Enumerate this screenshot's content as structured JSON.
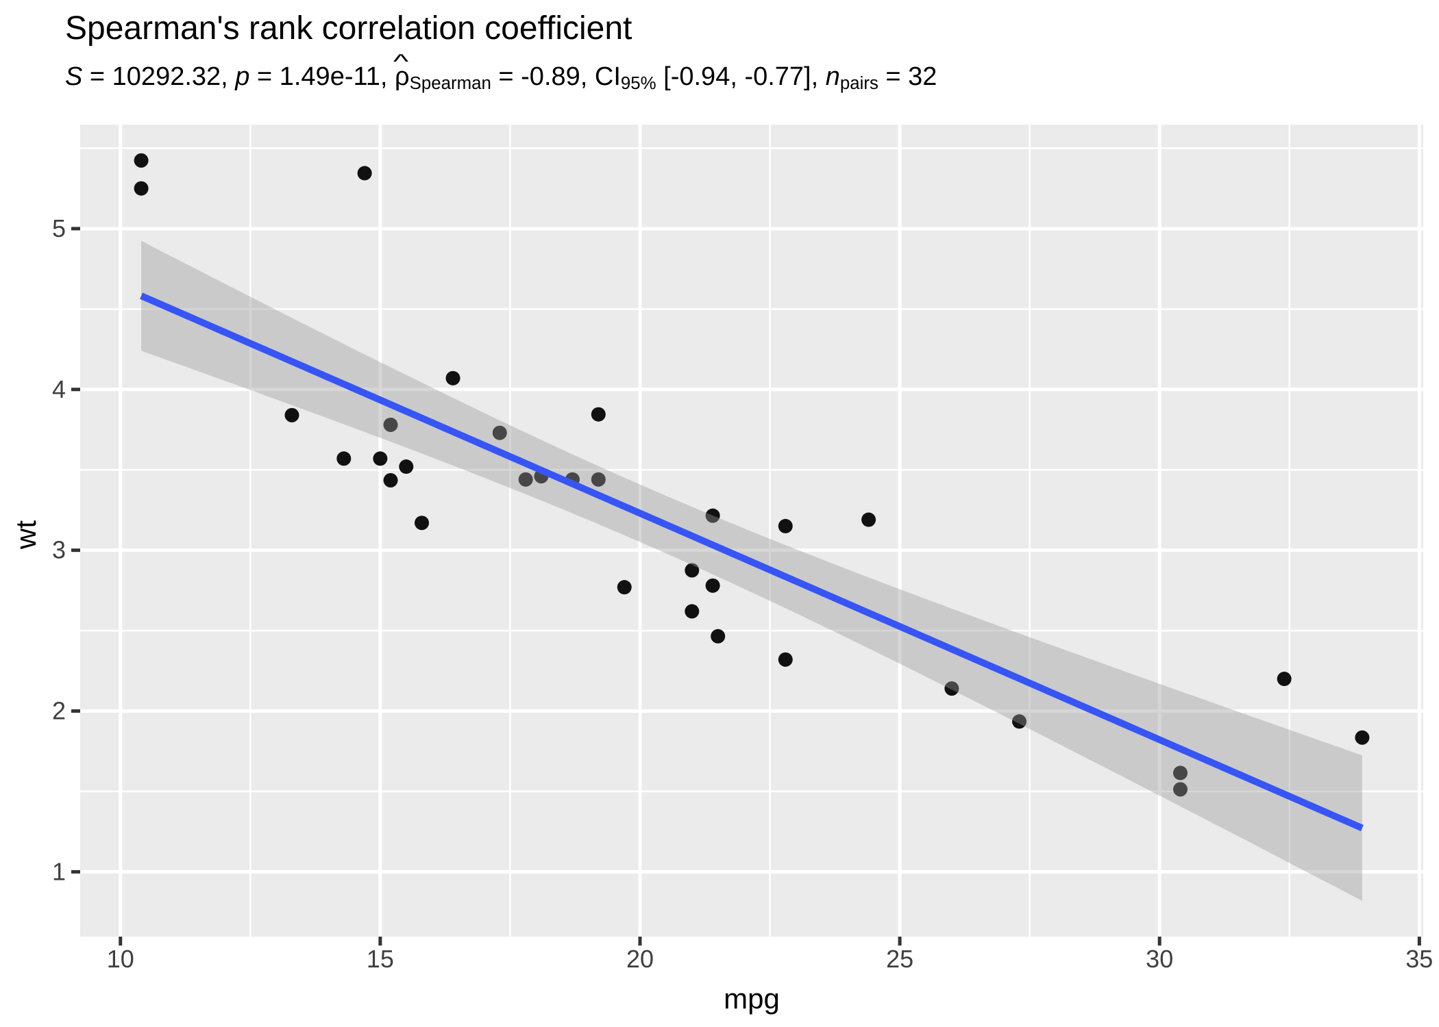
{
  "chart_data": {
    "type": "scatter",
    "title": "Spearman's rank correlation coefficient",
    "subtitle_plain": "S = 10292.32, p = 1.49e-11, ρ̂Spearman = -0.89, CI95% [-0.94, -0.77], npairs = 32",
    "subtitle_segments": [
      {
        "style": "italic",
        "text": "S"
      },
      {
        "style": "normal",
        "text": " = 10292.32, "
      },
      {
        "style": "italic",
        "text": "p"
      },
      {
        "style": "normal",
        "text": " = 1.49e-11, "
      },
      {
        "style": "hat",
        "text": "ρ",
        "hat": "^"
      },
      {
        "style": "sub",
        "text": "Spearman"
      },
      {
        "style": "normal",
        "text": " = -0.89, CI"
      },
      {
        "style": "sub",
        "text": "95%"
      },
      {
        "style": "normal",
        "text": " [-0.94, -0.77], "
      },
      {
        "style": "italic",
        "text": "n"
      },
      {
        "style": "sub",
        "text": "pairs"
      },
      {
        "style": "normal",
        "text": " = 32"
      }
    ],
    "xlabel": "mpg",
    "ylabel": "wt",
    "x_ticks": [
      10,
      15,
      20,
      25,
      30,
      35
    ],
    "y_ticks": [
      1,
      2,
      3,
      4,
      5
    ],
    "xlim": [
      9.225,
      35.075
    ],
    "ylim": [
      0.597,
      5.647
    ],
    "grid": true,
    "legend": false,
    "points": [
      [
        21.0,
        2.62
      ],
      [
        21.0,
        2.875
      ],
      [
        22.8,
        2.32
      ],
      [
        21.4,
        3.215
      ],
      [
        18.7,
        3.44
      ],
      [
        18.1,
        3.46
      ],
      [
        14.3,
        3.57
      ],
      [
        24.4,
        3.19
      ],
      [
        22.8,
        3.15
      ],
      [
        19.2,
        3.44
      ],
      [
        17.8,
        3.44
      ],
      [
        16.4,
        4.07
      ],
      [
        17.3,
        3.73
      ],
      [
        15.2,
        3.78
      ],
      [
        10.4,
        5.25
      ],
      [
        10.4,
        5.424
      ],
      [
        14.7,
        5.345
      ],
      [
        32.4,
        2.2
      ],
      [
        30.4,
        1.615
      ],
      [
        33.9,
        1.835
      ],
      [
        21.5,
        2.465
      ],
      [
        15.5,
        3.52
      ],
      [
        15.2,
        3.435
      ],
      [
        13.3,
        3.84
      ],
      [
        19.2,
        3.845
      ],
      [
        27.3,
        1.935
      ],
      [
        26.0,
        2.14
      ],
      [
        30.4,
        1.513
      ],
      [
        15.8,
        3.17
      ],
      [
        19.7,
        2.77
      ],
      [
        15.0,
        3.57
      ],
      [
        21.4,
        2.78
      ]
    ],
    "regression": {
      "model": "linear",
      "intercept": 6.0473,
      "slope": -0.14086,
      "x_min": 10.4,
      "x_max": 33.9,
      "band": {
        "se_scale": 1.01,
        "mean_x": 20.0906,
        "sxx": 1126.047,
        "n": 32
      }
    },
    "colors": {
      "panel": "#EBEBEB",
      "grid": "#FFFFFF",
      "tick": "#333333",
      "tick_label": "#3F3F3F",
      "point": "#111111",
      "line": "#3755F5",
      "band": "#999999",
      "band_opacity": 0.4
    }
  }
}
